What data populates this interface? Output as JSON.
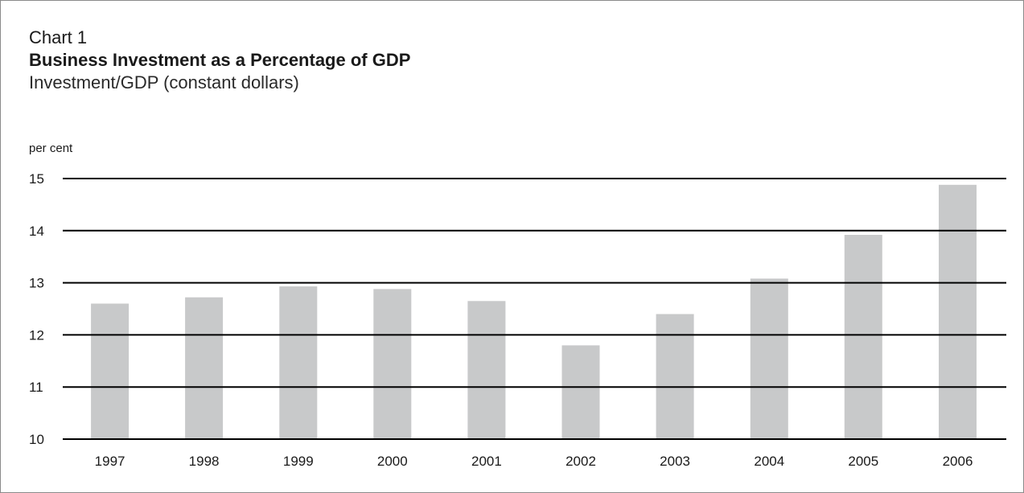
{
  "header": {
    "number": "Chart 1",
    "title": "Business Investment as a Percentage of GDP",
    "subtitle": "Investment/GDP (constant dollars)"
  },
  "colors": {
    "bar": "#c8c9ca",
    "gridline": "#000000",
    "text": "#1a1a1a"
  },
  "chart_data": {
    "type": "bar",
    "title": "Business Investment as a Percentage of GDP",
    "subtitle": "Investment/GDP (constant dollars)",
    "ylabel": "per cent",
    "xlabel": "",
    "categories": [
      "1997",
      "1998",
      "1999",
      "2000",
      "2001",
      "2002",
      "2003",
      "2004",
      "2005",
      "2006"
    ],
    "values": [
      12.6,
      12.72,
      12.93,
      12.88,
      12.65,
      11.8,
      12.4,
      13.08,
      13.92,
      14.88
    ],
    "ylim": [
      10,
      15
    ],
    "yticks": [
      10,
      11,
      12,
      13,
      14,
      15
    ],
    "grid": true,
    "legend": "none"
  }
}
